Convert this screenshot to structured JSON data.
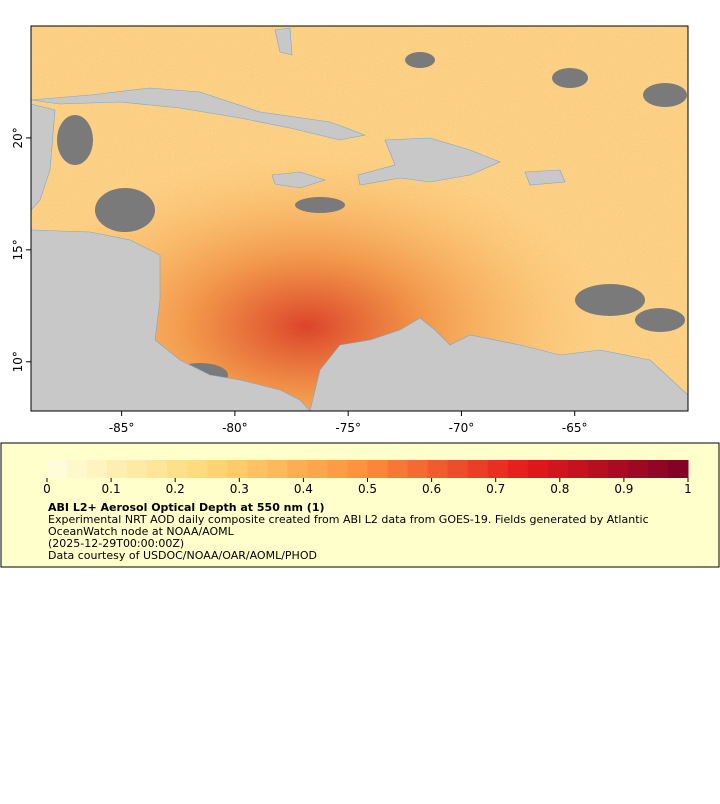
{
  "map": {
    "xlim": [
      -89,
      -60
    ],
    "ylim": [
      7.8,
      25
    ],
    "xticks": [
      {
        "value": -85,
        "label": "-85°"
      },
      {
        "value": -80,
        "label": "-80°"
      },
      {
        "value": -75,
        "label": "-75°"
      },
      {
        "value": -70,
        "label": "-70°"
      },
      {
        "value": -65,
        "label": "-65°"
      }
    ],
    "yticks": [
      {
        "value": 10,
        "label": "10°"
      },
      {
        "value": 15,
        "label": "15°"
      },
      {
        "value": 20,
        "label": "20°"
      }
    ]
  },
  "colorbar": {
    "range": [
      0,
      1
    ],
    "ticks": [
      0,
      0.1,
      0.2,
      0.3,
      0.4,
      0.5,
      0.6,
      0.7,
      0.8,
      0.9,
      1
    ]
  },
  "legend": {
    "title": "ABI L2+ Aerosol Optical Depth at 550 nm (1)",
    "lines": [
      "Experimental NRT AOD daily composite created from ABI L2 data from GOES-19. Fields generated by Atlantic",
      "OceanWatch node at NOAA/AOML",
      "(2025-12-29T00:00:00Z)",
      "Data courtesy of USDOC/NOAA/OAR/AOML/PHOD"
    ]
  }
}
